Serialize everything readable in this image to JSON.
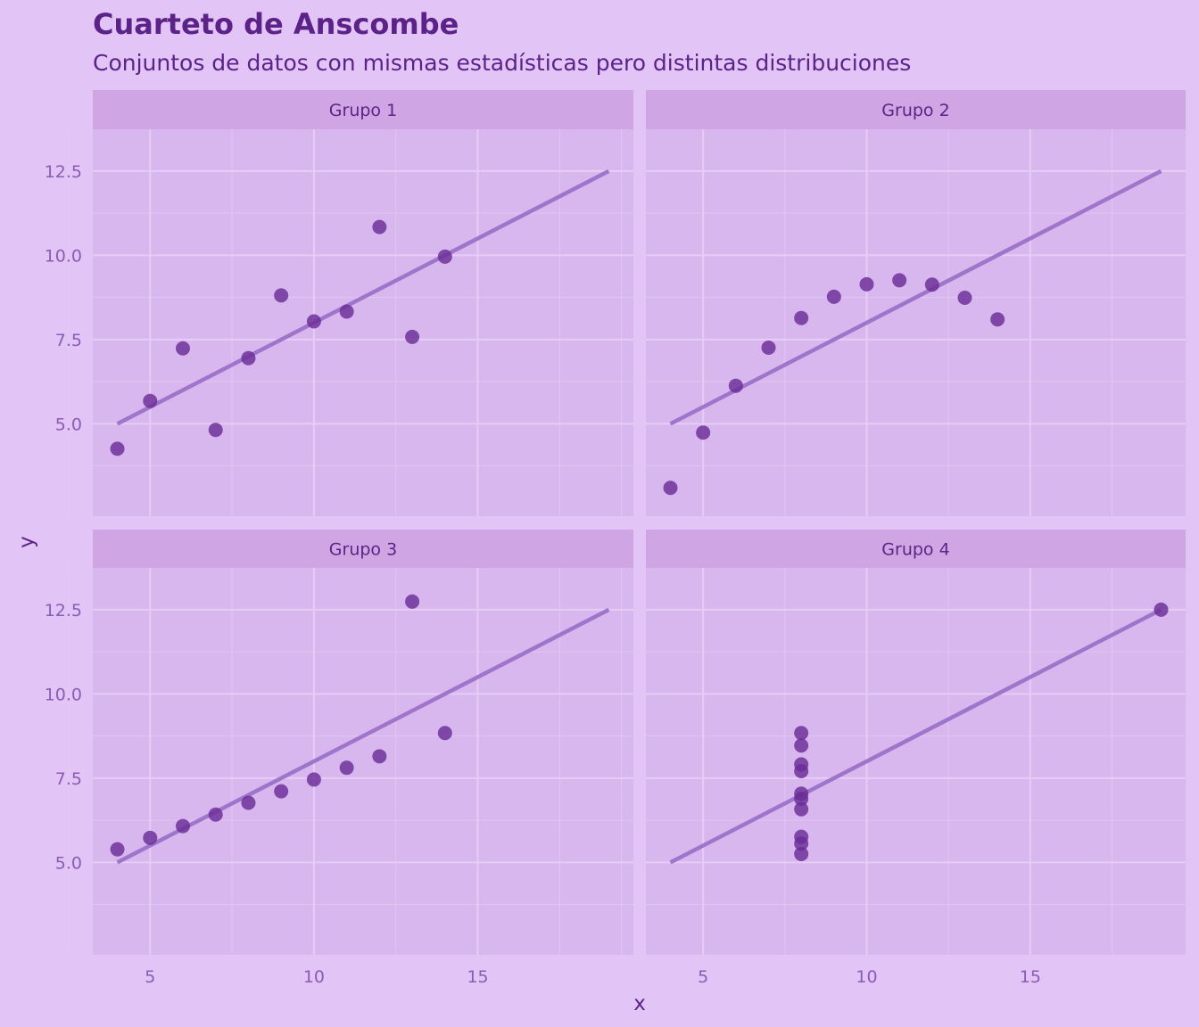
{
  "title": "Cuarteto de Anscombe",
  "subtitle": "Conjuntos de datos con mismas estadísticas pero distintas distribuciones",
  "colors": {
    "background": "#e2c4f6",
    "panel": "#d8b6ee",
    "strip": "#cfa6e3",
    "grid": "#e6cdf5",
    "point": "#6a2d96",
    "line": "#9b72c9",
    "text": "#5b2387",
    "tick": "#8b5cb5"
  },
  "chart_data": {
    "type": "scatter",
    "xlabel": "x",
    "ylabel": "y",
    "xlim": [
      3.25,
      19.75
    ],
    "ylim": [
      2.26,
      13.74
    ],
    "x_ticks": [
      "5",
      "10",
      "15"
    ],
    "x_tick_values": [
      5,
      10,
      15
    ],
    "y_ticks": [
      "5.0",
      "7.5",
      "10.0",
      "12.5"
    ],
    "y_tick_values": [
      5.0,
      7.5,
      10.0,
      12.5
    ],
    "regression": {
      "intercept": 3.0,
      "slope": 0.5,
      "x_range": [
        4,
        19
      ]
    },
    "panels": [
      {
        "label": "Grupo 1",
        "x": [
          10,
          8,
          13,
          9,
          11,
          14,
          6,
          4,
          12,
          7,
          5
        ],
        "y": [
          8.04,
          6.95,
          7.58,
          8.81,
          8.33,
          9.96,
          7.24,
          4.26,
          10.84,
          4.82,
          5.68
        ]
      },
      {
        "label": "Grupo 2",
        "x": [
          10,
          8,
          13,
          9,
          11,
          14,
          6,
          4,
          12,
          7,
          5
        ],
        "y": [
          9.14,
          8.14,
          8.74,
          8.77,
          9.26,
          8.1,
          6.13,
          3.1,
          9.13,
          7.26,
          4.74
        ]
      },
      {
        "label": "Grupo 3",
        "x": [
          10,
          8,
          13,
          9,
          11,
          14,
          6,
          4,
          12,
          7,
          5
        ],
        "y": [
          7.46,
          6.77,
          12.74,
          7.11,
          7.81,
          8.84,
          6.08,
          5.39,
          8.15,
          6.42,
          5.73
        ]
      },
      {
        "label": "Grupo 4",
        "x": [
          8,
          8,
          8,
          8,
          8,
          8,
          8,
          19,
          8,
          8,
          8
        ],
        "y": [
          6.58,
          5.76,
          7.71,
          8.84,
          8.47,
          7.04,
          5.25,
          12.5,
          5.56,
          7.91,
          6.89
        ]
      }
    ]
  }
}
